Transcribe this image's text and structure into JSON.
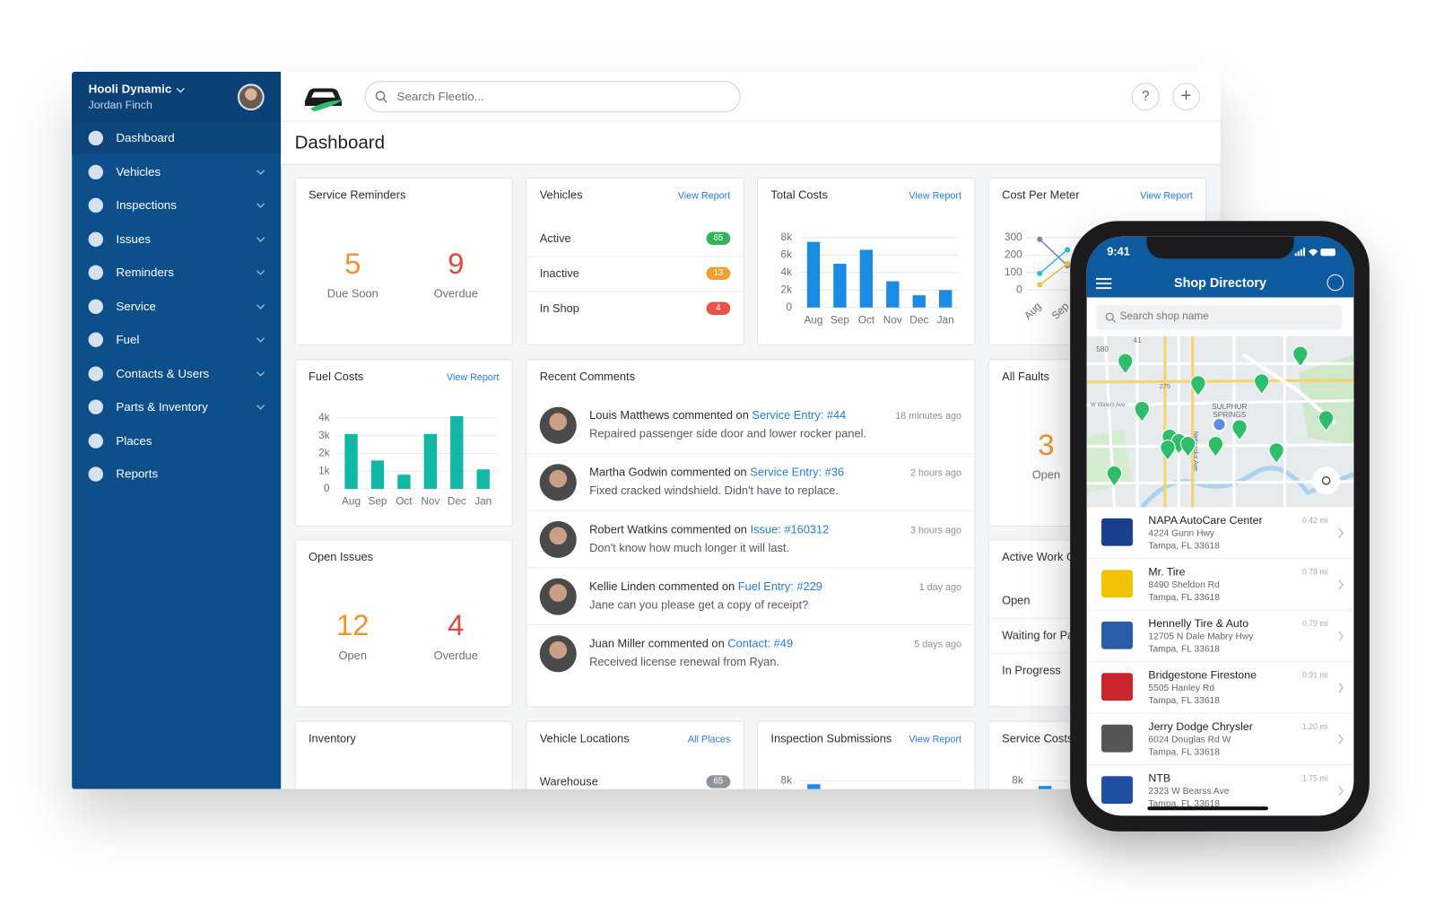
{
  "sidebar": {
    "org": "Hooli Dynamic",
    "user": "Jordan Finch",
    "nav": [
      {
        "label": "Dashboard",
        "expandable": false,
        "active": true
      },
      {
        "label": "Vehicles",
        "expandable": true
      },
      {
        "label": "Inspections",
        "expandable": true
      },
      {
        "label": "Issues",
        "expandable": true
      },
      {
        "label": "Reminders",
        "expandable": true
      },
      {
        "label": "Service",
        "expandable": true
      },
      {
        "label": "Fuel",
        "expandable": true
      },
      {
        "label": "Contacts & Users",
        "expandable": true
      },
      {
        "label": "Parts & Inventory",
        "expandable": true
      },
      {
        "label": "Places",
        "expandable": false
      },
      {
        "label": "Reports",
        "expandable": false
      }
    ]
  },
  "header": {
    "search_placeholder": "Search Fleetio...",
    "help": "?",
    "add": "+"
  },
  "page_title": "Dashboard",
  "widgets": {
    "service_reminders": {
      "title": "Service Reminders",
      "stats": [
        {
          "value": 5,
          "label": "Due Soon",
          "color": "#f0932b"
        },
        {
          "value": 9,
          "label": "Overdue",
          "color": "#e2483d"
        }
      ]
    },
    "vehicles": {
      "title": "Vehicles",
      "link": "View Report",
      "rows": [
        {
          "label": "Active",
          "count": 65,
          "color": "#2fb457"
        },
        {
          "label": "Inactive",
          "count": 13,
          "color": "#f0a030"
        },
        {
          "label": "In Shop",
          "count": 4,
          "color": "#e8534b"
        }
      ]
    },
    "total_costs": {
      "title": "Total Costs",
      "link": "View Report",
      "chart": {
        "type": "bar",
        "categories": [
          "Aug",
          "Sep",
          "Oct",
          "Nov",
          "Dec",
          "Jan"
        ],
        "values": [
          7500,
          5000,
          6600,
          3000,
          1400,
          2000
        ],
        "color": "#1a8ce6",
        "ylim": [
          0,
          8000
        ],
        "grid": true,
        "yticks": [
          0,
          {
            "value": 2000,
            "label": "2k"
          },
          {
            "value": 4000,
            "label": "4k"
          },
          {
            "value": 6000,
            "label": "6k"
          },
          {
            "value": 8000,
            "label": "8k"
          }
        ]
      }
    },
    "cost_per_meter": {
      "title": "Cost Per Meter",
      "link": "View Report",
      "chart": {
        "type": "line",
        "categories": [
          "Aug",
          "Sep"
        ],
        "series": [
          {
            "color": "#8e7cc3",
            "values": [
              290,
              140
            ]
          },
          {
            "color": "#2ec4d8",
            "values": [
              95,
              230
            ]
          },
          {
            "color": "#f2c94c",
            "values": [
              30,
              150
            ]
          }
        ],
        "ylim": [
          0,
          300
        ],
        "grid": true,
        "yticks": [
          0,
          100,
          200,
          300
        ]
      }
    },
    "fuel_costs": {
      "title": "Fuel Costs",
      "link": "View Report",
      "chart": {
        "type": "bar",
        "categories": [
          "Aug",
          "Sep",
          "Oct",
          "Nov",
          "Dec",
          "Jan"
        ],
        "values": [
          3100,
          1600,
          800,
          3100,
          4100,
          1100
        ],
        "color": "#12b8a6",
        "ylim": [
          0,
          4000
        ],
        "grid": true,
        "yticks": [
          0,
          {
            "value": 1000,
            "label": "1k"
          },
          {
            "value": 2000,
            "label": "2k"
          },
          {
            "value": 3000,
            "label": "3k"
          },
          {
            "value": 4000,
            "label": "4k"
          }
        ]
      }
    },
    "recent_comments": {
      "title": "Recent Comments",
      "comments": [
        {
          "author": "Louis Matthews",
          "action": "commented on",
          "target": "Service Entry: #44",
          "text": "Repaired passenger side door and lower rocker panel.",
          "time": "18 minutes ago"
        },
        {
          "author": "Martha Godwin",
          "action": "commented on",
          "target": "Service Entry: #36",
          "text": "Fixed cracked windshield. Didn't have to replace.",
          "time": "2 hours ago"
        },
        {
          "author": "Robert Watkins",
          "action": "commented on",
          "target": "Issue: #160312",
          "text": "Don't know how much longer it will last.",
          "time": "3 hours ago"
        },
        {
          "author": "Kellie Linden",
          "action": "commented on",
          "target": "Fuel Entry: #229",
          "text": "Jane can you please get a copy of receipt?",
          "time": "1 day ago"
        },
        {
          "author": "Juan Miller",
          "action": "commented on",
          "target": "Contact: #49",
          "text": "Received license renewal from Ryan.",
          "time": "5 days ago"
        }
      ]
    },
    "all_faults": {
      "title": "All Faults",
      "stats": [
        {
          "value": 3,
          "label": "Open",
          "color": "#f0932b"
        }
      ]
    },
    "open_issues": {
      "title": "Open Issues",
      "stats": [
        {
          "value": 12,
          "label": "Open",
          "color": "#f0932b"
        },
        {
          "value": 4,
          "label": "Overdue",
          "color": "#e2483d"
        }
      ]
    },
    "active_work_orders": {
      "title": "Active Work Orders",
      "rows": [
        {
          "label": "Open"
        },
        {
          "label": "Waiting for Parts"
        },
        {
          "label": "In Progress"
        }
      ]
    },
    "inventory": {
      "title": "Inventory"
    },
    "vehicle_locations": {
      "title": "Vehicle Locations",
      "link": "All Places",
      "rows": [
        {
          "label": "Warehouse",
          "count": 65,
          "color": "#8e9399"
        }
      ]
    },
    "inspection_submissions": {
      "title": "Inspection Submissions",
      "link": "View Report",
      "chart": {
        "type": "bar",
        "values": [
          7600
        ],
        "color": "#1a8ce6",
        "ylim": [
          0,
          8000
        ],
        "grid": true,
        "yticks": [
          {
            "value": 8000,
            "label": "8k"
          }
        ]
      }
    },
    "service_costs": {
      "title": "Service Costs",
      "chart": {
        "type": "bar",
        "values": [
          7400
        ],
        "color": "#1a8ce6",
        "ylim": [
          0,
          8000
        ],
        "grid": true,
        "yticks": [
          {
            "value": 8000,
            "label": "8k"
          }
        ]
      }
    }
  },
  "phone": {
    "time": "9:41",
    "title": "Shop Directory",
    "search_placeholder": "Search shop name",
    "map": {
      "labels": [
        "580",
        "41",
        "275",
        "W Waters Ave",
        "SULPHUR",
        "SPRINGS",
        "Nebraska Ave"
      ]
    },
    "shops": [
      {
        "name": "NAPA AutoCare Center",
        "address": "4224 Gunn Hwy",
        "city": "Tampa, FL 33618",
        "distance": "0.42 mi"
      },
      {
        "name": "Mr. Tire",
        "address": "8490 Sheldon Rd",
        "city": "Tampa, FL 33618",
        "distance": "0.78 mi"
      },
      {
        "name": "Hennelly Tire & Auto",
        "address": "12705 N Dale Mabry Hwy",
        "city": "Tampa, FL 33618",
        "distance": "0.79 mi"
      },
      {
        "name": "Bridgestone Firestone",
        "address": "5505 Hanley Rd",
        "city": "Tampa, FL 33618",
        "distance": "0.91 mi"
      },
      {
        "name": "Jerry Dodge Chrysler",
        "address": "6024 Douglas Rd W",
        "city": "Tampa, FL 33618",
        "distance": "1.20 mi"
      },
      {
        "name": "NTB",
        "address": "2323 W Bearss Ave",
        "city": "Tampa, FL 33618",
        "distance": "1.75 mi"
      }
    ]
  }
}
